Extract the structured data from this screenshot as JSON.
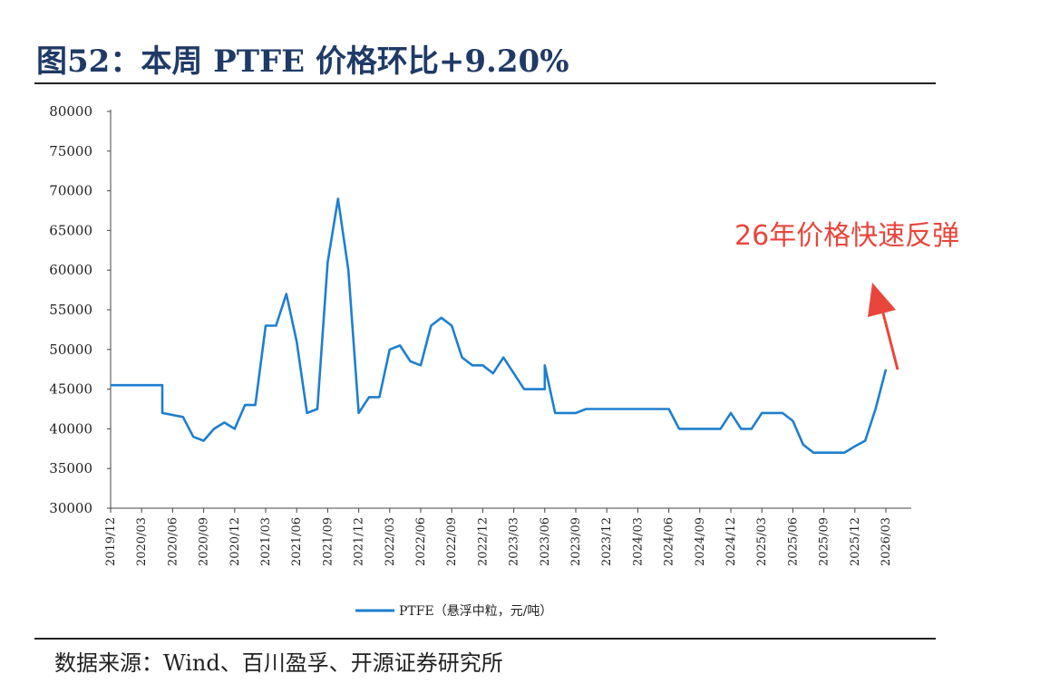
{
  "title": "图52：本周 PTFE 价格环比+9.20%",
  "source": "数据来源：Wind、百川盈孚、开源证券研究所",
  "annotation": "26年价格快速反弹",
  "colors": {
    "line": "#1e7fce",
    "title": "#1f3a66",
    "annotation": "#e8463c"
  },
  "chart_data": {
    "type": "line",
    "ylim": [
      30000,
      80000
    ],
    "yticks": [
      30000,
      35000,
      40000,
      45000,
      50000,
      55000,
      60000,
      65000,
      70000,
      75000,
      80000
    ],
    "xticks": [
      "2019/12",
      "2020/03",
      "2020/06",
      "2020/09",
      "2020/12",
      "2021/03",
      "2021/06",
      "2021/09",
      "2021/12",
      "2022/03",
      "2022/06",
      "2022/09",
      "2022/12",
      "2023/03",
      "2023/06",
      "2023/09",
      "2023/12",
      "2024/03",
      "2024/06",
      "2024/09",
      "2024/12",
      "2025/03",
      "2025/06",
      "2025/09",
      "2025/12",
      "2026/03"
    ],
    "legend": "PTFE（悬浮中粒，元/吨）",
    "series": [
      {
        "name": "PTFE（悬浮中粒，元/吨）",
        "x": [
          "2019/12",
          "2020/05",
          "2020/05",
          "2020/07",
          "2020/08",
          "2020/09",
          "2020/10",
          "2020/11",
          "2020/12",
          "2021/01",
          "2021/02",
          "2021/03",
          "2021/04",
          "2021/05",
          "2021/06",
          "2021/07",
          "2021/08",
          "2021/09",
          "2021/10",
          "2021/11",
          "2021/12",
          "2022/01",
          "2022/02",
          "2022/03",
          "2022/04",
          "2022/05",
          "2022/06",
          "2022/07",
          "2022/08",
          "2022/09",
          "2022/10",
          "2022/11",
          "2022/12",
          "2023/01",
          "2023/02",
          "2023/03",
          "2023/04",
          "2023/05",
          "2023/06",
          "2023/06",
          "2023/07",
          "2023/08",
          "2023/09",
          "2023/10",
          "2023/12",
          "2024/03",
          "2024/06",
          "2024/07",
          "2024/09",
          "2024/11",
          "2024/12",
          "2025/01",
          "2025/02",
          "2025/03",
          "2025/05",
          "2025/06",
          "2025/07",
          "2025/08",
          "2025/10",
          "2025/11",
          "2025/12",
          "2026/01",
          "2026/02",
          "2026/03"
        ],
        "values": [
          45500,
          45500,
          42000,
          41500,
          39000,
          38500,
          40000,
          40800,
          40000,
          43000,
          43000,
          53000,
          53000,
          57000,
          51000,
          42000,
          42500,
          61000,
          69000,
          60000,
          42000,
          44000,
          44000,
          50000,
          50500,
          48500,
          48000,
          53000,
          54000,
          53000,
          49000,
          48000,
          48000,
          47000,
          49000,
          47000,
          45000,
          45000,
          45000,
          48000,
          42000,
          42000,
          42000,
          42500,
          42500,
          42500,
          42500,
          40000,
          40000,
          40000,
          42000,
          40000,
          40000,
          42000,
          42000,
          41000,
          38000,
          37000,
          37000,
          37000,
          37800,
          38500,
          42500,
          47500
        ]
      }
    ]
  }
}
